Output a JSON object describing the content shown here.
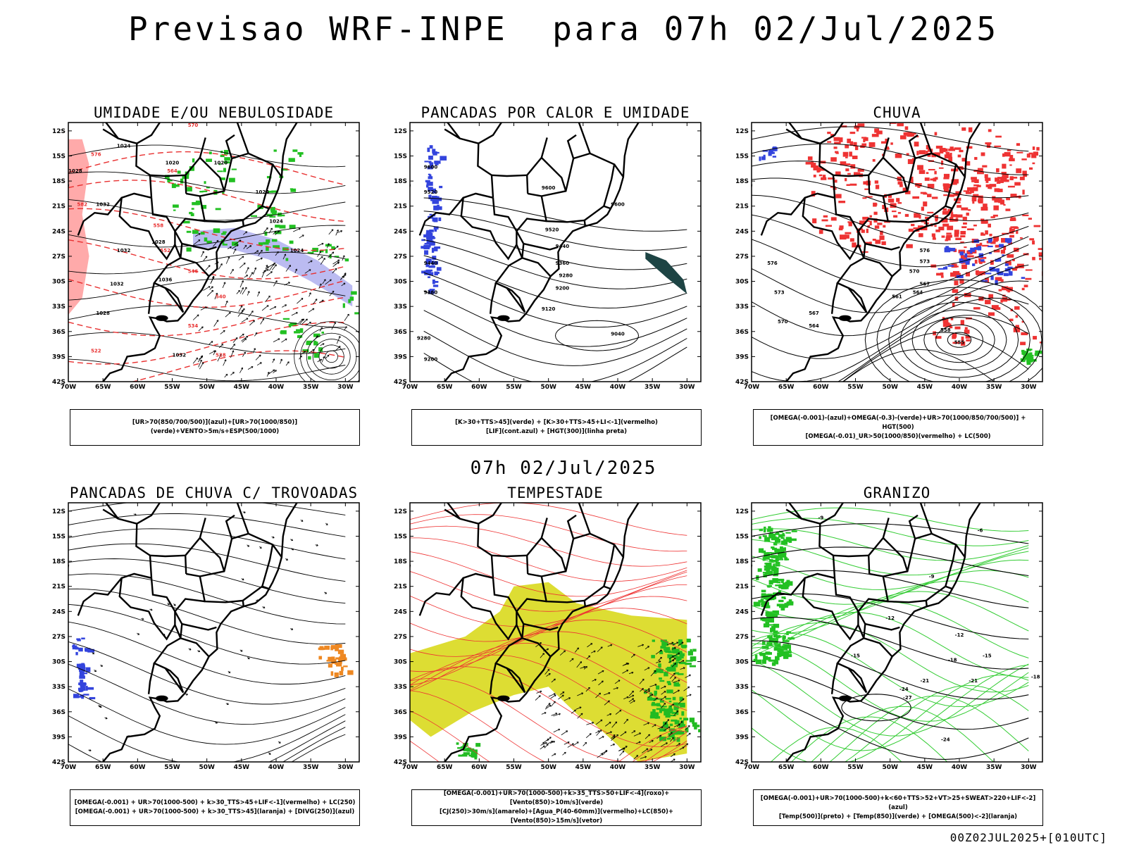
{
  "title": "Previsao WRF-INPE  para 07h 02/Jul/2025",
  "mid_title": "07h 02/Jul/2025",
  "footer": "00Z02JUL2025+[010UTC]",
  "lat_ticks": [
    "12S",
    "15S",
    "18S",
    "21S",
    "24S",
    "27S",
    "30S",
    "33S",
    "36S",
    "39S",
    "42S"
  ],
  "lon_ticks": [
    "70W",
    "65W",
    "60W",
    "55W",
    "50W",
    "45W",
    "40W",
    "35W",
    "30W"
  ],
  "panels": [
    {
      "title": "UMIDADE E/OU NEBULOSIDADE",
      "legend": [
        "[UR>70(850/700/500)](azul)+[UR>70(1000/850)](verde)+VENTO>5m/s+ESP(500/1000)"
      ],
      "contour_labels": [
        "1024",
        "1020",
        "1020",
        "1028",
        "1032",
        "1032",
        "1036",
        "1028",
        "1032",
        "1024",
        "1024",
        "1024",
        "1032",
        "1028"
      ],
      "red_labels": [
        "570",
        "564",
        "558",
        "552",
        "546",
        "540",
        "534",
        "528",
        "522",
        "576",
        "582"
      ]
    },
    {
      "title": "PANCADAS POR CALOR E UMIDADE",
      "legend": [
        "[K>30+TTS>45](verde) + [K>30+TTS>45+LI<-1](vermelho)",
        "[LIF](cont.azul) + [HGT(300)](linha preta)"
      ],
      "contour_labels": [
        "9600",
        "9520",
        "9440",
        "9360",
        "9280",
        "9200",
        "9120",
        "9040",
        "9520",
        "9440",
        "9360",
        "9280",
        "9200",
        "9600",
        "9600"
      ]
    },
    {
      "title": "CHUVA",
      "legend": [
        "[OMEGA(-0.001)-(azul)+OMEGA(-0.3)-(verde)+UR>70(1000/850/700/500)] + HGT(500)",
        "[OMEGA(-0.01)_UR>50(1000/850)(vermelho) + LC(500)"
      ],
      "contour_labels": [
        "576",
        "573",
        "570",
        "567",
        "564",
        "561",
        "558",
        "555",
        "576",
        "573",
        "570",
        "567",
        "564"
      ]
    },
    {
      "title": "PANCADAS DE CHUVA C/ TROVOADAS",
      "legend": [
        "[OMEGA(-0.001) + UR>70(1000-500) + k>30_TTS>45+LIF<-1](vermelho) + LC(250)",
        "[OMEGA(-0.001) + UR>70(1000-500) + k>30_TTS>45](laranja) + [DIVG(250)](azul)"
      ]
    },
    {
      "title": "TEMPESTADE",
      "legend": [
        "[OMEGA(-0.001)+UR>70(1000-500)+k>35_TTS>50+LIF<-4](roxo)+[Vento(850)>10m/s](verde)",
        "[CJ(250)>30m/s](amarelo)+[Agua_P(40-60mm)](vermelho)+LC(850)+[Vento(850)>15m/s](vetor)"
      ]
    },
    {
      "title": "GRANIZO",
      "legend": [
        "[OMEGA(-0.001)+UR>70(1000-500)+k<60+TTS>52+VT>25+SWEAT>220+LIF<-2](azul)",
        "[Temp(500)](preto) + [Temp(850)](verde) + [OMEGA(500)<-2](laranja)"
      ],
      "contour_labels": [
        "-9",
        "-12",
        "-12",
        "-15",
        "-15",
        "-18",
        "-18",
        "-21",
        "-21",
        "-24",
        "-24",
        "-27",
        "-6",
        "-9"
      ]
    }
  ]
}
